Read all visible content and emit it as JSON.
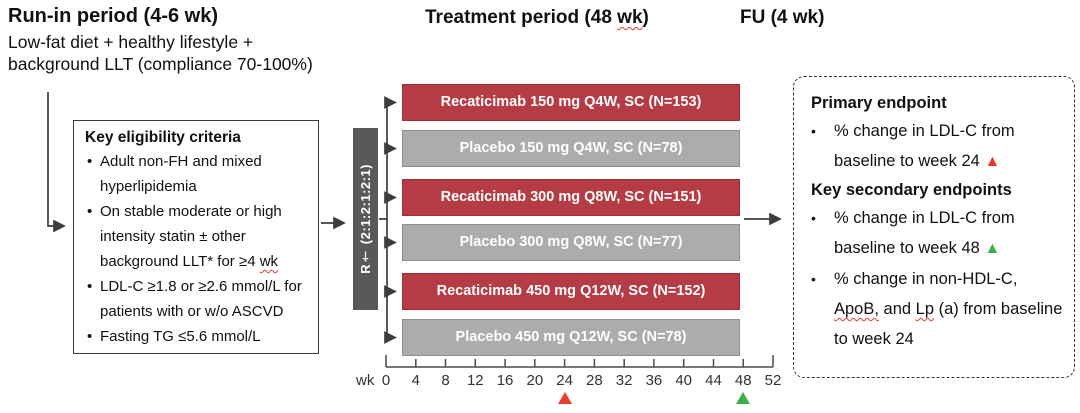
{
  "headings": {
    "run_in_title": "Run-in period (4-6 wk)",
    "run_in_subtitle": "Low-fat diet + healthy lifestyle + background LLT (compliance 70-100%)",
    "treatment_title_segments": [
      {
        "t": "Treatment period (48 "
      },
      {
        "t": "wk",
        "cls": "wavy"
      },
      {
        "t": ")"
      }
    ],
    "fu_title": "FU (4 wk)"
  },
  "eligibility": {
    "title": "Key eligibility criteria",
    "bullets": [
      [
        {
          "t": "Adult non-FH and mixed hyperlipidemia"
        }
      ],
      [
        {
          "t": "On stable moderate or high intensity statin ± other background LLT* for ≥4 "
        },
        {
          "t": "wk",
          "cls": "wavy"
        }
      ],
      [
        {
          "t": "LDL-C ≥1.8 or ≥2.6 mmol/L for patients with or w/o ASCVD"
        }
      ],
      [
        {
          "t": "Fasting TG ≤5.6 mmol/L"
        }
      ]
    ]
  },
  "randomization": {
    "label": "R† (2:1:2:1:2:1)"
  },
  "arms": [
    {
      "label": "Recaticimab 150 mg Q4W, SC (N=153)",
      "type": "recaticimab"
    },
    {
      "label": "Placebo 150 mg Q4W, SC (N=78)",
      "type": "placebo"
    },
    {
      "label": "Recaticimab 300 mg Q8W, SC (N=151)",
      "type": "recaticimab"
    },
    {
      "label": "Placebo 300 mg Q8W, SC (N=77)",
      "type": "placebo"
    },
    {
      "label": "Recaticimab 450 mg Q12W, SC (N=152)",
      "type": "recaticimab"
    },
    {
      "label": "Placebo 450 mg Q12W, SC (N=78)",
      "type": "placebo"
    }
  ],
  "axis": {
    "unit_label": "wk",
    "ticks": [
      "0",
      "4",
      "8",
      "12",
      "16",
      "20",
      "24",
      "28",
      "32",
      "36",
      "40",
      "44",
      "48",
      "52"
    ],
    "primary_marker_week": 24,
    "secondary_marker_week": 48
  },
  "endpoints": {
    "primary_title": "Primary endpoint",
    "primary_bullets": [
      [
        {
          "t": "% change in LDL-C from baseline to week 24 "
        },
        {
          "t": "▲",
          "cls": "tri-red"
        }
      ]
    ],
    "secondary_title": "Key secondary endpoints",
    "secondary_bullets": [
      [
        {
          "t": "% change in LDL-C from baseline to week 48 "
        },
        {
          "t": "▲",
          "cls": "tri-green"
        }
      ],
      [
        {
          "t": "% change in non-HDL-C, "
        },
        {
          "t": "ApoB,",
          "cls": "wavy"
        },
        {
          "t": " and "
        },
        {
          "t": "Lp",
          "cls": "wavy"
        },
        {
          "t": " (a) from baseline to week 24"
        }
      ]
    ]
  },
  "colors": {
    "recaticimab_red": "#B53B44",
    "recaticimab_red_border": "#9E3039",
    "placebo_gray": "#ACACAC",
    "placebo_gray_border": "#8E8E8E",
    "randomization_gray": "#595959",
    "line": "#3D3D3D",
    "marker_red": "#E93A2E",
    "marker_green": "#3FAE49"
  }
}
